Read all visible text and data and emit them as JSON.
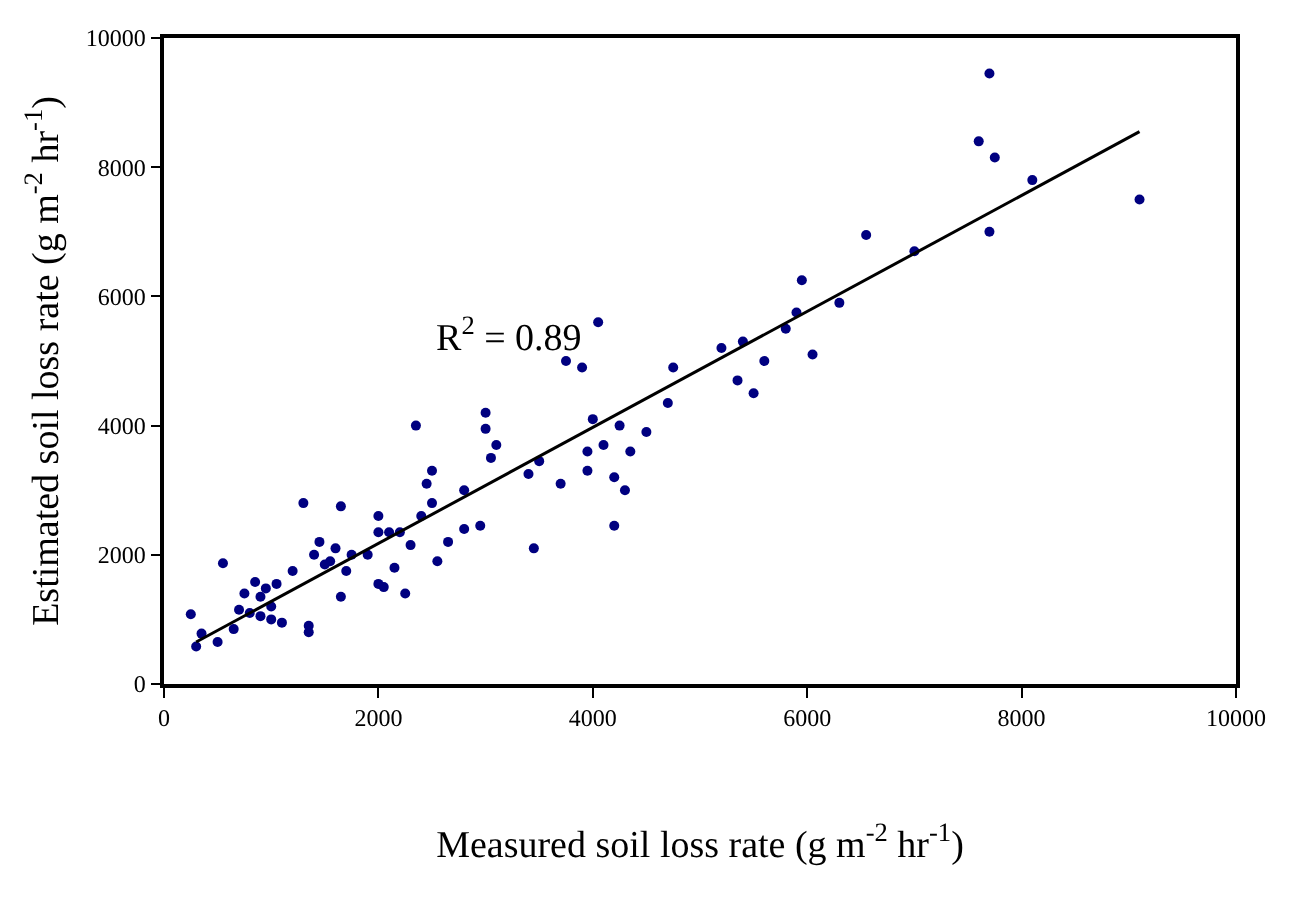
{
  "chart_data": {
    "type": "scatter",
    "xlabel": "Measured soil loss rate (g m$^{-2}$ hr$^{-1}$)",
    "ylabel": "Estimated soil loss rate (g m$^{-2}$ hr$^{-1}$)",
    "annotations": [
      "R$^{2}$ = 0.89"
    ],
    "xlim": [
      0,
      10000
    ],
    "xticks": [
      0,
      2000,
      4000,
      6000,
      8000,
      10000
    ],
    "ylim": [
      0,
      10000
    ],
    "yticks": [
      0,
      2000,
      4000,
      6000,
      8000,
      10000
    ],
    "marker": "circle",
    "series": [
      {
        "color": "#000080",
        "x": [
          250,
          300,
          350,
          500,
          550,
          650,
          700,
          750,
          800,
          850,
          900,
          900,
          950,
          1000,
          1000,
          1050,
          1100,
          1200,
          1300,
          1350,
          1350,
          1400,
          1450,
          1500,
          1550,
          1600,
          1650,
          1650,
          1700,
          1750,
          1900,
          2000,
          2000,
          2000,
          2050,
          2100,
          2150,
          2200,
          2250,
          2300,
          2350,
          2400,
          2450,
          2500,
          2500,
          2550,
          2650,
          2800,
          2800,
          2950,
          3000,
          3000,
          3050,
          3100,
          3400,
          3450,
          3500,
          3700,
          3750,
          3900,
          3950,
          3950,
          4000,
          4050,
          4100,
          4200,
          4200,
          4250,
          4300,
          4350,
          4500,
          4700,
          4750,
          5200,
          5350,
          5400,
          5500,
          5600,
          5800,
          5900,
          5950,
          6050,
          6300,
          6550,
          7000,
          7600,
          7700,
          7700,
          7750,
          8100,
          9100
        ],
        "values": [
          1080,
          580,
          780,
          650,
          1870,
          850,
          1150,
          1400,
          1100,
          1580,
          1350,
          1050,
          1480,
          1000,
          1200,
          1550,
          950,
          1750,
          2800,
          900,
          800,
          2000,
          2200,
          1850,
          1900,
          2100,
          2750,
          1350,
          1750,
          2000,
          2000,
          2350,
          1550,
          2600,
          1500,
          2350,
          1800,
          2350,
          1400,
          2150,
          4000,
          2600,
          3100,
          3300,
          2800,
          1900,
          2200,
          2400,
          3000,
          2450,
          3950,
          4200,
          3500,
          3700,
          3250,
          2100,
          3450,
          3100,
          5000,
          4900,
          3600,
          3300,
          4100,
          5600,
          3700,
          2450,
          3200,
          4000,
          3000,
          3600,
          3900,
          4350,
          4900,
          5200,
          4700,
          5300,
          4500,
          5000,
          5500,
          5750,
          6250,
          5100,
          5900,
          6950,
          6700,
          8400,
          9450,
          7000,
          8150,
          7800,
          7500
        ]
      },
      {
        "type": "line",
        "color": "#000000",
        "marker": "none",
        "line_style": "solid",
        "x": [
          300,
          9100
        ],
        "values": [
          650,
          8550
        ]
      }
    ]
  }
}
